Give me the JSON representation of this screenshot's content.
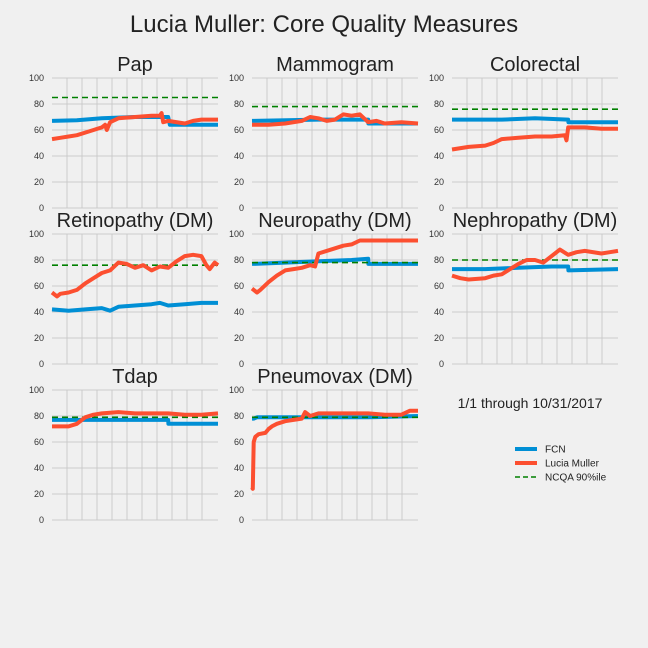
{
  "figure_title": "Lucia Muller: Core Quality Measures",
  "date_range_note": "1/1 through 10/31/2017",
  "colors": {
    "FCN": "#008fd5",
    "Lucia Muller": "#fc4f30",
    "NCQA 90%ile": "#008000",
    "grid": "#cbcbcb"
  },
  "legend": {
    "placement": "lower-right",
    "entries": [
      "FCN",
      "Lucia Muller",
      "NCQA 90%ile"
    ]
  },
  "chart_data": [
    {
      "type": "line",
      "title": "Pap",
      "ylim": [
        0,
        100
      ],
      "yticks": [
        0,
        20,
        40,
        60,
        80,
        100
      ],
      "xlim": [
        0,
        10
      ],
      "grid": true,
      "series": [
        {
          "name": "FCN",
          "x": [
            0,
            1.5,
            3,
            5,
            7,
            7.1,
            10
          ],
          "y": [
            67,
            67.5,
            69,
            70,
            70,
            64,
            64
          ]
        },
        {
          "name": "Lucia Muller",
          "x": [
            0,
            0.5,
            1,
            1.5,
            2,
            2.5,
            3,
            3.2,
            3.3,
            3.5,
            4,
            5,
            6,
            6.5,
            6.6,
            6.7,
            7,
            8,
            8.5,
            9,
            10
          ],
          "y": [
            53,
            54,
            55,
            56,
            58,
            60,
            62,
            64,
            60,
            66,
            69,
            70,
            71,
            71,
            73,
            66,
            67,
            65,
            67,
            68,
            68
          ]
        },
        {
          "name": "NCQA 90%ile",
          "x": [
            0,
            10
          ],
          "y": [
            85,
            85
          ]
        }
      ]
    },
    {
      "type": "line",
      "title": "Mammogram",
      "ylim": [
        0,
        100
      ],
      "yticks": [
        0,
        20,
        40,
        60,
        80,
        100
      ],
      "xlim": [
        0,
        10
      ],
      "grid": true,
      "series": [
        {
          "name": "FCN",
          "x": [
            0,
            4,
            5,
            7,
            7.01,
            10
          ],
          "y": [
            67,
            68,
            68,
            68,
            65,
            65
          ]
        },
        {
          "name": "Lucia Muller",
          "x": [
            0,
            1,
            2,
            3,
            3.5,
            4,
            4.5,
            5,
            5.5,
            6,
            6.5,
            7,
            7.5,
            8,
            9,
            10
          ],
          "y": [
            64,
            64,
            65,
            67,
            70,
            69,
            67,
            68,
            72,
            71,
            72,
            66,
            67,
            65,
            66,
            65
          ]
        },
        {
          "name": "NCQA 90%ile",
          "x": [
            0,
            10
          ],
          "y": [
            78,
            78
          ]
        }
      ]
    },
    {
      "type": "line",
      "title": "Colorectal",
      "ylim": [
        0,
        100
      ],
      "yticks": [
        0,
        20,
        40,
        60,
        80,
        100
      ],
      "xlim": [
        0,
        10
      ],
      "grid": true,
      "series": [
        {
          "name": "FCN",
          "x": [
            0,
            3,
            5,
            7,
            7.01,
            10
          ],
          "y": [
            68,
            68,
            69,
            68,
            66,
            66
          ]
        },
        {
          "name": "Lucia Muller",
          "x": [
            0,
            1,
            2,
            2.5,
            3,
            4,
            5,
            6,
            6.8,
            6.9,
            7,
            7.1,
            8,
            9,
            10
          ],
          "y": [
            45,
            47,
            48,
            50,
            53,
            54,
            55,
            55,
            56,
            52,
            62,
            62,
            62,
            61,
            61
          ]
        },
        {
          "name": "NCQA 90%ile",
          "x": [
            0,
            10
          ],
          "y": [
            76,
            76
          ]
        }
      ]
    },
    {
      "type": "line",
      "title": "Retinopathy (DM)",
      "ylim": [
        0,
        100
      ],
      "yticks": [
        0,
        20,
        40,
        60,
        80,
        100
      ],
      "xlim": [
        0,
        10
      ],
      "grid": true,
      "series": [
        {
          "name": "FCN",
          "x": [
            0,
            1,
            2,
            3,
            3.5,
            4,
            5,
            6,
            6.5,
            7,
            8,
            9,
            10
          ],
          "y": [
            42,
            41,
            42,
            43,
            41,
            44,
            45,
            46,
            47,
            45,
            46,
            47,
            47
          ]
        },
        {
          "name": "Lucia Muller",
          "x": [
            0,
            0.3,
            0.5,
            1,
            1.5,
            2,
            2.5,
            3,
            3.5,
            4,
            4.5,
            5,
            5.5,
            6,
            6.5,
            7,
            7.5,
            8,
            8.5,
            9,
            9.3,
            9.5,
            9.8,
            10
          ],
          "y": [
            55,
            52,
            54,
            55,
            57,
            62,
            66,
            70,
            72,
            78,
            77,
            74,
            76,
            72,
            75,
            74,
            79,
            83,
            84,
            83,
            76,
            73,
            78,
            76
          ]
        },
        {
          "name": "NCQA 90%ile",
          "x": [
            0,
            10
          ],
          "y": [
            76,
            76
          ]
        }
      ]
    },
    {
      "type": "line",
      "title": "Neuropathy (DM)",
      "ylim": [
        0,
        100
      ],
      "yticks": [
        0,
        20,
        40,
        60,
        80,
        100
      ],
      "xlim": [
        0,
        10
      ],
      "grid": true,
      "series": [
        {
          "name": "FCN",
          "x": [
            0,
            2,
            4,
            6,
            7,
            7.01,
            10
          ],
          "y": [
            77,
            78,
            79,
            80,
            81,
            77,
            77
          ]
        },
        {
          "name": "Lucia Muller",
          "x": [
            0,
            0.3,
            0.5,
            1,
            1.5,
            2,
            2.5,
            3,
            3.5,
            3.8,
            4,
            5,
            5.5,
            6,
            6.5,
            7,
            8,
            10
          ],
          "y": [
            58,
            55,
            57,
            63,
            68,
            72,
            73,
            74,
            76,
            75,
            85,
            89,
            91,
            92,
            95,
            95,
            95,
            95
          ]
        },
        {
          "name": "NCQA 90%ile",
          "x": [
            0,
            10
          ],
          "y": [
            78,
            78
          ]
        }
      ]
    },
    {
      "type": "line",
      "title": "Nephropathy (DM)",
      "ylim": [
        0,
        100
      ],
      "yticks": [
        0,
        20,
        40,
        60,
        80,
        100
      ],
      "xlim": [
        0,
        10
      ],
      "grid": true,
      "series": [
        {
          "name": "FCN",
          "x": [
            0,
            2,
            4,
            6,
            7,
            7.01,
            10
          ],
          "y": [
            73,
            73,
            74,
            75,
            75,
            72,
            73
          ]
        },
        {
          "name": "Lucia Muller",
          "x": [
            0,
            0.5,
            1,
            2,
            2.5,
            3,
            3.5,
            4,
            4.5,
            5,
            5.5,
            6,
            6.5,
            7,
            7.5,
            8,
            9,
            9.5,
            10
          ],
          "y": [
            68,
            66,
            65,
            66,
            68,
            69,
            73,
            77,
            80,
            80,
            78,
            83,
            88,
            84,
            86,
            87,
            85,
            86,
            87
          ]
        },
        {
          "name": "NCQA 90%ile",
          "x": [
            0,
            10
          ],
          "y": [
            80,
            80
          ]
        }
      ]
    },
    {
      "type": "line",
      "title": "Tdap",
      "ylim": [
        0,
        100
      ],
      "yticks": [
        0,
        20,
        40,
        60,
        80,
        100
      ],
      "xlim": [
        0,
        10
      ],
      "grid": true,
      "series": [
        {
          "name": "FCN",
          "x": [
            0,
            3,
            7,
            7.01,
            10
          ],
          "y": [
            77,
            77,
            77,
            74,
            74
          ]
        },
        {
          "name": "Lucia Muller",
          "x": [
            0,
            1,
            1.5,
            2,
            2.5,
            3,
            4,
            5,
            6,
            7,
            8,
            9,
            10
          ],
          "y": [
            72,
            72,
            74,
            79,
            81,
            82,
            83,
            82,
            82,
            82,
            81,
            81,
            82
          ]
        },
        {
          "name": "NCQA 90%ile",
          "x": [
            0,
            10
          ],
          "y": [
            79,
            79
          ]
        }
      ]
    },
    {
      "type": "line",
      "title": "Pneumovax (DM)",
      "ylim": [
        0,
        100
      ],
      "yticks": [
        0,
        20,
        40,
        60,
        80,
        100
      ],
      "xlim": [
        0,
        10
      ],
      "grid": true,
      "series": [
        {
          "name": "FCN",
          "x": [
            0,
            0.1,
            0.3,
            3,
            5,
            7,
            10
          ],
          "y": [
            78,
            78,
            79,
            79,
            79,
            79,
            80
          ]
        },
        {
          "name": "Lucia Muller",
          "x": [
            0,
            0.05,
            0.1,
            0.2,
            0.4,
            0.8,
            1,
            1.2,
            1.5,
            2,
            2.5,
            3,
            3.2,
            3.5,
            4,
            5,
            6,
            7,
            8,
            9,
            9.5,
            10
          ],
          "y": [
            25,
            24,
            60,
            64,
            66,
            67,
            70,
            72,
            74,
            76,
            77,
            78,
            83,
            80,
            82,
            82,
            82,
            82,
            81,
            81,
            84,
            84
          ]
        },
        {
          "name": "NCQA 90%ile",
          "x": [
            0,
            10
          ],
          "y": [
            79,
            79
          ]
        }
      ]
    }
  ]
}
